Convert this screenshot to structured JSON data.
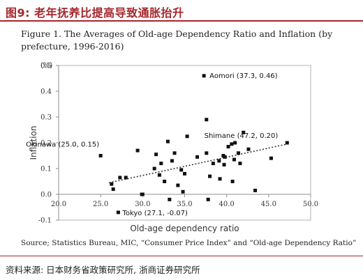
{
  "header": {
    "title": "图9:  老年抚养比提高导致通胀抬升"
  },
  "figure": {
    "caption": "Figure 1. The Averages of Old-age Dependency Ratio and Inflation (by prefecture, 1996-2016)",
    "source": "Source; Statistics Bureau, MIC, “Consumer Price Index” and “Old-age Dependency Ratio”"
  },
  "footer": {
    "text": "资料来源:  日本财务省政策研究所,  浙商证券研究所"
  },
  "colors": {
    "accent": "#a6262c",
    "points": "#111111",
    "trendline": "#333333"
  },
  "chart_data": {
    "type": "scatter",
    "xlabel": "Old-age dependency ratio",
    "ylabel": "Inflation",
    "yunit": "(%)",
    "xlim": [
      20,
      50
    ],
    "ylim": [
      -0.1,
      0.5
    ],
    "xticks": [
      "20.0",
      "25.0",
      "30.0",
      "35.0",
      "40.0",
      "45.0",
      "50.0"
    ],
    "yticks": [
      "0.5",
      "0.4",
      "0.3",
      "0.2",
      "0.1",
      "0.0",
      "-0.1"
    ],
    "trendline": {
      "style": "dotted",
      "from": [
        26.0,
        0.045
      ],
      "to": [
        47.2,
        0.195
      ]
    },
    "annotations": [
      {
        "text": "Aomori (37.3, 0.46)",
        "x": 37.3,
        "y": 0.46
      },
      {
        "text": "Shimane (47.2, 0.20)",
        "x": 47.2,
        "y": 0.2
      },
      {
        "text": "Okinawa (25.0, 0.15)",
        "x": 25.0,
        "y": 0.15
      },
      {
        "text": "Tokyo (27.1, -0.07)",
        "x": 27.1,
        "y": -0.07
      }
    ],
    "points": [
      {
        "x": 25.0,
        "y": 0.15
      },
      {
        "x": 26.3,
        "y": 0.04
      },
      {
        "x": 26.5,
        "y": 0.02
      },
      {
        "x": 27.1,
        "y": -0.07
      },
      {
        "x": 27.3,
        "y": 0.065
      },
      {
        "x": 28.0,
        "y": 0.065
      },
      {
        "x": 29.4,
        "y": 0.17
      },
      {
        "x": 29.9,
        "y": 0.0
      },
      {
        "x": 30.0,
        "y": 0.0
      },
      {
        "x": 31.4,
        "y": 0.1
      },
      {
        "x": 31.6,
        "y": 0.155
      },
      {
        "x": 32.0,
        "y": 0.075
      },
      {
        "x": 32.2,
        "y": 0.12
      },
      {
        "x": 32.6,
        "y": 0.05
      },
      {
        "x": 33.0,
        "y": 0.205
      },
      {
        "x": 33.2,
        "y": -0.02
      },
      {
        "x": 33.5,
        "y": 0.13
      },
      {
        "x": 33.8,
        "y": 0.16
      },
      {
        "x": 34.2,
        "y": 0.035
      },
      {
        "x": 34.6,
        "y": 0.095
      },
      {
        "x": 34.8,
        "y": 0.01
      },
      {
        "x": 35.0,
        "y": 0.08
      },
      {
        "x": 35.3,
        "y": 0.225
      },
      {
        "x": 36.5,
        "y": 0.145
      },
      {
        "x": 37.3,
        "y": 0.46
      },
      {
        "x": 37.6,
        "y": 0.29
      },
      {
        "x": 37.6,
        "y": 0.16
      },
      {
        "x": 37.8,
        "y": -0.02
      },
      {
        "x": 38.0,
        "y": 0.07
      },
      {
        "x": 38.4,
        "y": 0.12
      },
      {
        "x": 39.1,
        "y": 0.13
      },
      {
        "x": 39.2,
        "y": 0.06
      },
      {
        "x": 39.6,
        "y": 0.15
      },
      {
        "x": 39.7,
        "y": 0.115
      },
      {
        "x": 39.8,
        "y": 0.145
      },
      {
        "x": 40.2,
        "y": 0.185
      },
      {
        "x": 40.6,
        "y": 0.195
      },
      {
        "x": 40.7,
        "y": 0.05
      },
      {
        "x": 40.9,
        "y": 0.135
      },
      {
        "x": 41.0,
        "y": 0.2
      },
      {
        "x": 41.4,
        "y": 0.16
      },
      {
        "x": 41.6,
        "y": 0.12
      },
      {
        "x": 42.0,
        "y": 0.24
      },
      {
        "x": 42.6,
        "y": 0.175
      },
      {
        "x": 43.4,
        "y": 0.015
      },
      {
        "x": 45.3,
        "y": 0.14
      },
      {
        "x": 47.2,
        "y": 0.2
      }
    ]
  }
}
